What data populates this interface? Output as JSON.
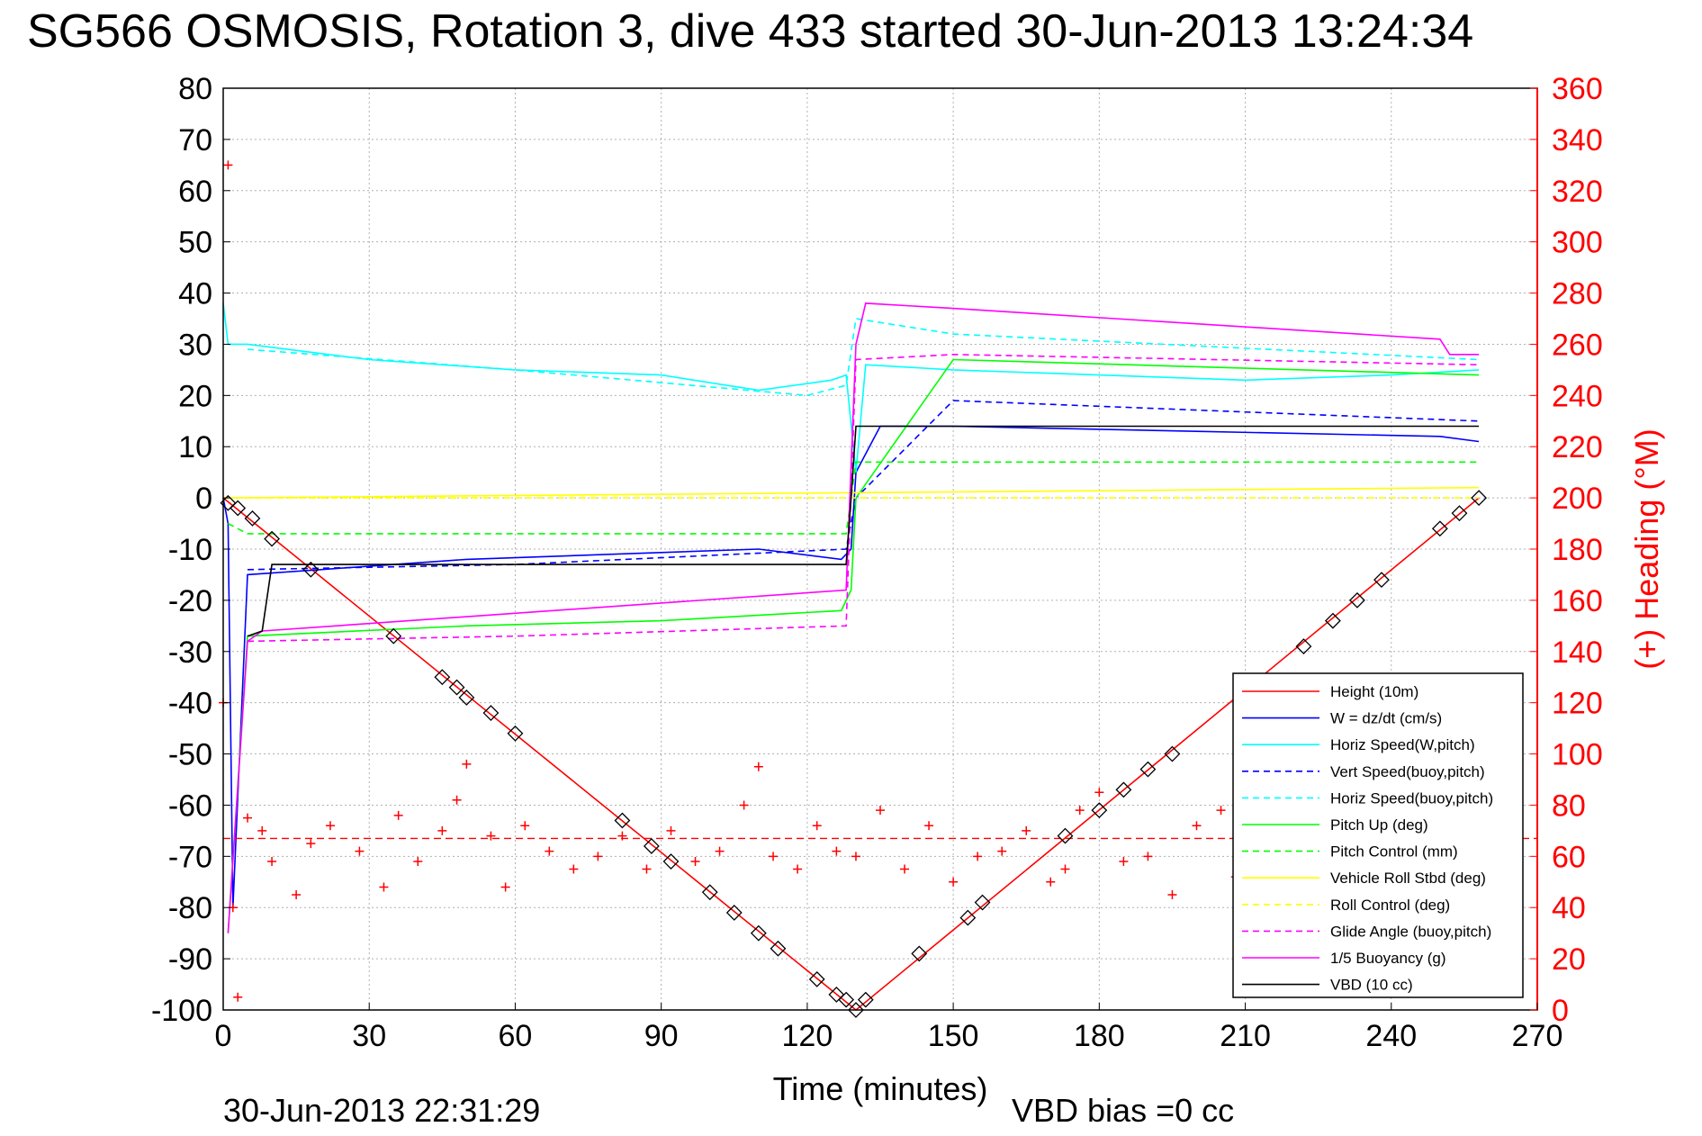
{
  "chart_data": {
    "type": "line",
    "title": "SG566 OSMOSIS, Rotation 3, dive 433 started 30-Jun-2013 13:24:34",
    "xlabel": "Time (minutes)",
    "ylabel": "",
    "y2label": "(+) Heading (°M)",
    "xlim": [
      0,
      270
    ],
    "ylim": [
      -100,
      80
    ],
    "y2lim": [
      0,
      360
    ],
    "x_ticks": [
      "0",
      "30",
      "60",
      "90",
      "120",
      "150",
      "180",
      "210",
      "240",
      "270"
    ],
    "y_ticks": [
      "80",
      "70",
      "60",
      "50",
      "40",
      "30",
      "20",
      "10",
      "0",
      "-10",
      "-20",
      "-30",
      "-40",
      "-50",
      "-60",
      "-70",
      "-80",
      "-90",
      "-100"
    ],
    "y2_ticks": [
      "360",
      "340",
      "320",
      "300",
      "280",
      "260",
      "240",
      "220",
      "200",
      "180",
      "160",
      "140",
      "120",
      "100",
      "80",
      "60",
      "40",
      "20",
      "0"
    ],
    "grid": true,
    "legend_position": "bottom-right",
    "footer_left": "30-Jun-2013 22:31:29",
    "footer_right": "VBD bias =0 cc",
    "colors": {
      "red": "#ff0000",
      "blue": "#0000ff",
      "cyan": "#00ffff",
      "green": "#00ff00",
      "yellow": "#ffff00",
      "magenta": "#ff00ff",
      "black": "#000000"
    },
    "series": [
      {
        "name": "Height (10m)",
        "color": "#ff0000",
        "style": "solid",
        "x": [
          0,
          130,
          258
        ],
        "y": [
          0,
          -100,
          0
        ]
      },
      {
        "name": "W = dz/dt (cm/s)",
        "color": "#0000ff",
        "style": "solid",
        "x": [
          0,
          1,
          2,
          5,
          20,
          50,
          80,
          110,
          127,
          129,
          130,
          135,
          150,
          200,
          250,
          258
        ],
        "y": [
          0,
          -5,
          -80,
          -15,
          -14,
          -12,
          -11,
          -10,
          -12,
          -10,
          5,
          14,
          14,
          13,
          12,
          11
        ]
      },
      {
        "name": "Horiz Speed(W,pitch)",
        "color": "#00ffff",
        "style": "solid",
        "x": [
          0,
          1,
          5,
          30,
          60,
          90,
          110,
          125,
          128,
          130,
          132,
          150,
          180,
          210,
          240,
          258
        ],
        "y": [
          38,
          30,
          30,
          27,
          25,
          24,
          21,
          23,
          24,
          5,
          26,
          25,
          24,
          23,
          24,
          25
        ]
      },
      {
        "name": "Vert Speed(buoy,pitch)",
        "color": "#0000ff",
        "style": "dashed",
        "x": [
          5,
          60,
          128,
          130,
          150,
          258
        ],
        "y": [
          -14,
          -13,
          -10,
          0,
          19,
          15
        ]
      },
      {
        "name": "Horiz Speed(buoy,pitch)",
        "color": "#00ffff",
        "style": "dashed",
        "x": [
          5,
          60,
          120,
          128,
          130,
          150,
          258
        ],
        "y": [
          29,
          25,
          20,
          22,
          35,
          32,
          27
        ]
      },
      {
        "name": "Pitch Up (deg)",
        "color": "#00ff00",
        "style": "solid",
        "x": [
          1,
          5,
          50,
          90,
          127,
          129,
          130,
          150,
          258
        ],
        "y": [
          -85,
          -27,
          -25,
          -24,
          -22,
          -18,
          0,
          27,
          24
        ]
      },
      {
        "name": "Pitch Control (mm)",
        "color": "#00ff00",
        "style": "dashed",
        "x": [
          1,
          5,
          128,
          129,
          130,
          258
        ],
        "y": [
          -5,
          -7,
          -7,
          0,
          7,
          7
        ]
      },
      {
        "name": "Vehicle Roll Stbd (deg)",
        "color": "#ffff00",
        "style": "solid",
        "x": [
          0,
          258
        ],
        "y": [
          0,
          2
        ]
      },
      {
        "name": "Roll Control (deg)",
        "color": "#ffff00",
        "style": "dashed",
        "x": [
          0,
          258
        ],
        "y": [
          0,
          0
        ]
      },
      {
        "name": "Glide Angle (buoy,pitch)",
        "color": "#ff00ff",
        "style": "dashed",
        "x": [
          5,
          60,
          128,
          130,
          150,
          258
        ],
        "y": [
          -28,
          -27,
          -25,
          27,
          28,
          26
        ]
      },
      {
        "name": "1/5 Buoyancy (g)",
        "color": "#ff00ff",
        "style": "solid",
        "x": [
          1,
          5,
          8,
          128,
          130,
          132,
          150,
          250,
          252,
          258
        ],
        "y": [
          -85,
          -28,
          -26,
          -18,
          30,
          38,
          37,
          31,
          28,
          28
        ]
      },
      {
        "name": "VBD (10 cc)",
        "color": "#000000",
        "style": "solid",
        "x": [
          5,
          8,
          10,
          128,
          129,
          130,
          132,
          258
        ],
        "y": [
          -27,
          -26,
          -13,
          -13,
          0,
          14,
          14,
          14
        ]
      }
    ],
    "heading_series": {
      "name": "Heading",
      "axis": "right",
      "color": "#ff0000",
      "marker": "+",
      "reference_line": 67,
      "x": [
        0,
        1,
        2,
        3,
        5,
        8,
        10,
        15,
        18,
        22,
        28,
        33,
        36,
        40,
        45,
        48,
        50,
        55,
        58,
        62,
        67,
        72,
        77,
        82,
        87,
        92,
        97,
        102,
        107,
        110,
        113,
        118,
        122,
        126,
        130,
        135,
        140,
        145,
        150,
        155,
        160,
        165,
        170,
        173,
        176,
        180,
        185,
        190,
        195,
        200,
        205,
        208
      ],
      "y": [
        120,
        330,
        40,
        5,
        75,
        70,
        58,
        45,
        65,
        72,
        62,
        48,
        76,
        58,
        70,
        82,
        96,
        68,
        48,
        72,
        62,
        55,
        60,
        68,
        55,
        70,
        58,
        62,
        80,
        95,
        60,
        55,
        72,
        62,
        60,
        78,
        55,
        72,
        50,
        60,
        62,
        70,
        50,
        55,
        78,
        85,
        58,
        60,
        45,
        72,
        78,
        52
      ]
    },
    "markers": {
      "name": "samples",
      "x": [
        1,
        3,
        6,
        10,
        18,
        35,
        45,
        48,
        50,
        55,
        60,
        82,
        88,
        92,
        100,
        105,
        110,
        114,
        122,
        126,
        128,
        130,
        132,
        143,
        153,
        156,
        173,
        180,
        185,
        190,
        195,
        210,
        222,
        228,
        233,
        238,
        250,
        254,
        258
      ],
      "y": [
        -1,
        -2,
        -4,
        -8,
        -14,
        -27,
        -35,
        -37,
        -39,
        -42,
        -46,
        -63,
        -68,
        -71,
        -77,
        -81,
        -85,
        -88,
        -94,
        -97,
        -98,
        -100,
        -98,
        -89,
        -82,
        -79,
        -66,
        -61,
        -57,
        -53,
        -50,
        -38,
        -29,
        -24,
        -20,
        -16,
        -6,
        -3,
        0
      ]
    },
    "legend": [
      "Height (10m)",
      "W = dz/dt (cm/s)",
      "Horiz Speed(W,pitch)",
      "Vert Speed(buoy,pitch)",
      "Horiz Speed(buoy,pitch)",
      "Pitch Up (deg)",
      "Pitch Control (mm)",
      "Vehicle Roll Stbd (deg)",
      "Roll Control (deg)",
      "Glide Angle (buoy,pitch)",
      "1/5 Buoyancy (g)",
      "VBD (10 cc)"
    ]
  }
}
